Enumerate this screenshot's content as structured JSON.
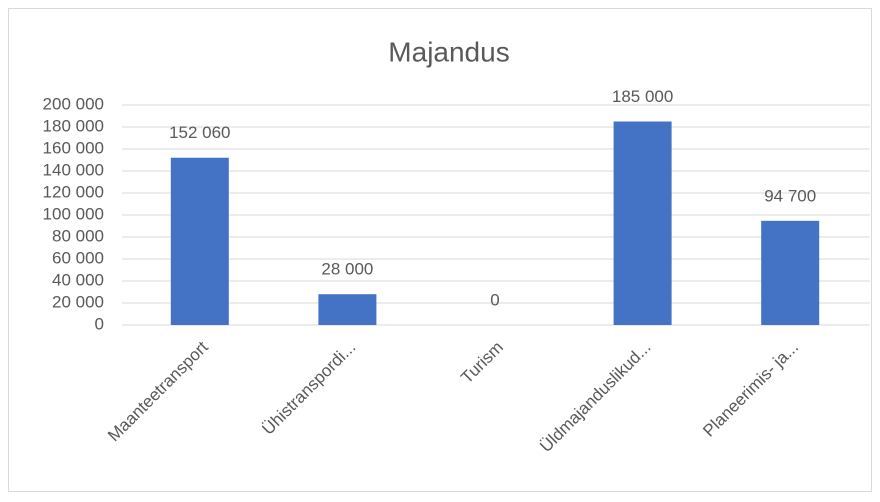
{
  "chart_data": {
    "type": "bar",
    "title": "Majandus",
    "categories": [
      "Maanteetransport",
      "Ühistranspordi...",
      "Turism",
      "Üldmajanduslikud...",
      "Planeerimis- ja..."
    ],
    "values": [
      152060,
      28000,
      0,
      185000,
      94700
    ],
    "value_labels": [
      "152 060",
      "28 000",
      "0",
      "185 000",
      "94 700"
    ],
    "color": "#4472c4",
    "ylim": [
      0,
      200000
    ],
    "yticks": [
      0,
      {
        "value": 20000,
        "label": "20 000"
      },
      {
        "value": 40000,
        "label": "40 000"
      },
      {
        "value": 60000,
        "label": "60 000"
      },
      {
        "value": 80000,
        "label": "80 000"
      },
      {
        "value": 100000,
        "label": "100 000"
      },
      {
        "value": 120000,
        "label": "120 000"
      },
      {
        "value": 140000,
        "label": "140 000"
      },
      {
        "value": 160000,
        "label": "160 000"
      },
      {
        "value": 180000,
        "label": "180 000"
      },
      {
        "value": 200000,
        "label": "200 000"
      }
    ],
    "grid": true
  }
}
